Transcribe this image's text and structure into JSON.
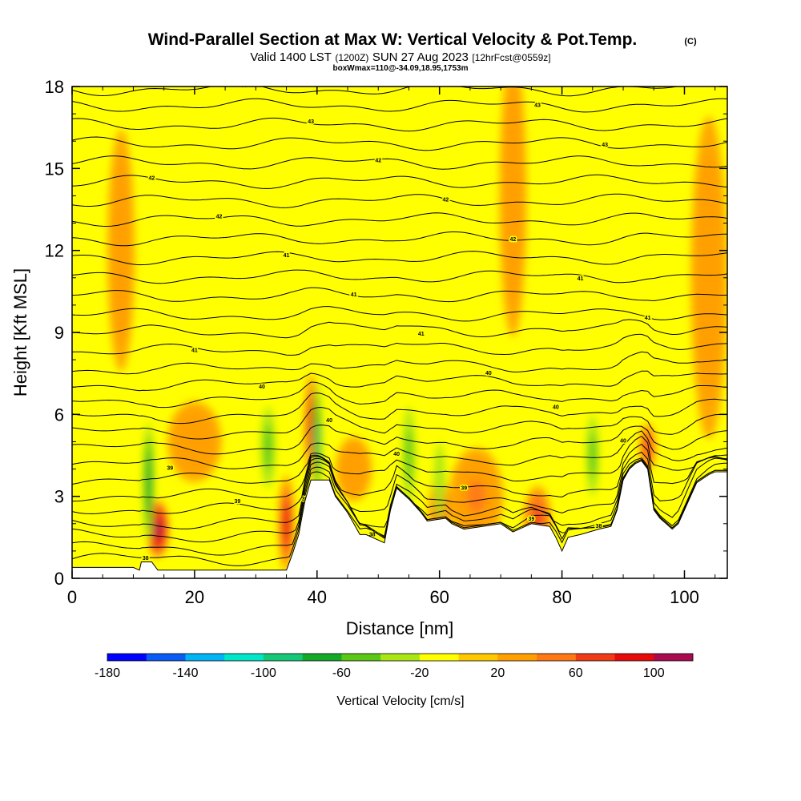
{
  "chart_data": {
    "type": "heatmap",
    "title": "Wind-Parallel Section at Max W: Vertical Velocity & Pot.Temp.",
    "title_mark": "(C)",
    "subtitle_valid": "Valid 1400 LST",
    "subtitle_utc": "(1200Z)",
    "subtitle_date": "SUN 27 Aug 2023",
    "subtitle_fcst": "[12hrFcst@0559z]",
    "subtitle_box": "boxWmax=110@-34.09,18.95,1753m",
    "xlabel": "Distance [nm]",
    "ylabel": "Height [Kft MSL]",
    "xlim": [
      0,
      107
    ],
    "ylim": [
      0,
      18
    ],
    "xticks": [
      "0",
      "20",
      "40",
      "60",
      "80",
      "100"
    ],
    "xtick_values": [
      0,
      20,
      40,
      60,
      80,
      100
    ],
    "yticks": [
      "0",
      "3",
      "6",
      "9",
      "12",
      "15",
      "18"
    ],
    "ytick_values": [
      0,
      3,
      6,
      9,
      12,
      15,
      18
    ],
    "colorbar": {
      "label": "Vertical Velocity [cm/s]",
      "min": -180,
      "max": 120,
      "ticks": [
        "-180",
        "-140",
        "-100",
        "-60",
        "-20",
        "20",
        "60",
        "100"
      ],
      "colors": [
        "#0000ff",
        "#0a5af5",
        "#00b4f5",
        "#00e6c8",
        "#14c878",
        "#14aa28",
        "#5ac814",
        "#aae614",
        "#ffff00",
        "#ffc800",
        "#ffa000",
        "#ff7814",
        "#f03c14",
        "#e60a0a",
        "#aa0a50"
      ]
    },
    "background_w_color": "#ffff00",
    "terrain_kft": [
      [
        0,
        0.4
      ],
      [
        10,
        0.4
      ],
      [
        11,
        0.3
      ],
      [
        11.3,
        0.6
      ],
      [
        13,
        0.6
      ],
      [
        14,
        0.3
      ],
      [
        25,
        0.3
      ],
      [
        35,
        0.3
      ],
      [
        36,
        0.9
      ],
      [
        37,
        1.6
      ],
      [
        38,
        2.8
      ],
      [
        39,
        3.6
      ],
      [
        40,
        3.6
      ],
      [
        41,
        3.6
      ],
      [
        42,
        3.6
      ],
      [
        43,
        3.0
      ],
      [
        45,
        2.4
      ],
      [
        46,
        2.0
      ],
      [
        47,
        1.6
      ],
      [
        48,
        1.6
      ],
      [
        51,
        1.3
      ],
      [
        52,
        2.5
      ],
      [
        53,
        3.3
      ],
      [
        55,
        2.9
      ],
      [
        57,
        2.4
      ],
      [
        58,
        2.1
      ],
      [
        61,
        2.2
      ],
      [
        62,
        2.0
      ],
      [
        64,
        1.8
      ],
      [
        67,
        1.9
      ],
      [
        70,
        2.0
      ],
      [
        72,
        1.7
      ],
      [
        75,
        2.0
      ],
      [
        78,
        1.9
      ],
      [
        79,
        1.5
      ],
      [
        80,
        1.0
      ],
      [
        81,
        1.5
      ],
      [
        83,
        1.6
      ],
      [
        86,
        1.8
      ],
      [
        88,
        1.9
      ],
      [
        89,
        2.5
      ],
      [
        90,
        3.6
      ],
      [
        91,
        4.0
      ],
      [
        92,
        4.2
      ],
      [
        93,
        4.3
      ],
      [
        94,
        4.0
      ],
      [
        95,
        2.5
      ],
      [
        96,
        2.2
      ],
      [
        97,
        2.0
      ],
      [
        98,
        1.8
      ],
      [
        99,
        2.0
      ],
      [
        100,
        2.5
      ],
      [
        101,
        3.0
      ],
      [
        102,
        3.5
      ],
      [
        104,
        3.8
      ],
      [
        105,
        3.9
      ],
      [
        107,
        3.9
      ]
    ],
    "theta_contours": [
      {
        "label": "38",
        "base_kft": 0.6
      },
      {
        "label": "38",
        "base_kft": 0.9
      },
      {
        "label": "38",
        "base_kft": 1.3
      },
      {
        "label": "39",
        "base_kft": 1.7
      },
      {
        "label": "39",
        "base_kft": 2.2
      },
      {
        "label": "39",
        "base_kft": 2.7
      },
      {
        "label": "39",
        "base_kft": 3.3
      },
      {
        "label": "39",
        "base_kft": 3.9
      },
      {
        "label": "40",
        "base_kft": 4.5
      },
      {
        "label": "40",
        "base_kft": 5.1
      },
      {
        "label": "40",
        "base_kft": 5.7
      },
      {
        "label": "40",
        "base_kft": 6.3
      },
      {
        "label": "40",
        "base_kft": 6.9
      },
      {
        "label": "40",
        "base_kft": 7.5
      },
      {
        "label": "41",
        "base_kft": 8.2
      },
      {
        "label": "41",
        "base_kft": 8.9
      },
      {
        "label": "41",
        "base_kft": 9.6
      },
      {
        "label": "41",
        "base_kft": 10.3
      },
      {
        "label": "41",
        "base_kft": 11.0
      },
      {
        "label": "41",
        "base_kft": 11.7
      },
      {
        "label": "42",
        "base_kft": 12.4
      },
      {
        "label": "42",
        "base_kft": 13.1
      },
      {
        "label": "42",
        "base_kft": 13.8
      },
      {
        "label": "42",
        "base_kft": 14.5
      },
      {
        "label": "42",
        "base_kft": 15.2
      },
      {
        "label": "43",
        "base_kft": 15.9
      },
      {
        "label": "43",
        "base_kft": 16.6
      },
      {
        "label": "43",
        "base_kft": 17.3
      },
      {
        "label": "44",
        "base_kft": 17.9
      }
    ],
    "w_features": [
      {
        "sign": "up",
        "value": 110,
        "x": 14,
        "y": 1.8,
        "sx": 1.2,
        "sy": 0.7
      },
      {
        "sign": "up",
        "value": 90,
        "x": 35,
        "y": 2.0,
        "sx": 0.9,
        "sy": 1.2
      },
      {
        "sign": "up",
        "value": 90,
        "x": 39,
        "y": 5.6,
        "sx": 0.7,
        "sy": 1.3
      },
      {
        "sign": "up",
        "value": 60,
        "x": 60,
        "y": 2.5,
        "sx": 1.2,
        "sy": 0.8
      },
      {
        "sign": "up",
        "value": 60,
        "x": 76,
        "y": 2.2,
        "sx": 1.5,
        "sy": 0.8
      },
      {
        "sign": "up",
        "value": 70,
        "x": 94,
        "y": 4.8,
        "sx": 0.9,
        "sy": 0.6
      },
      {
        "sign": "up",
        "value": 40,
        "x": 66,
        "y": 3.0,
        "sx": 3.0,
        "sy": 1.2
      },
      {
        "sign": "up",
        "value": 30,
        "x": 8,
        "y": 12,
        "sx": 1.5,
        "sy": 3.0
      },
      {
        "sign": "up",
        "value": 30,
        "x": 72,
        "y": 14,
        "sx": 1.5,
        "sy": 3.5
      },
      {
        "sign": "up",
        "value": 30,
        "x": 104,
        "y": 11,
        "sx": 2.0,
        "sy": 4.0
      },
      {
        "sign": "up",
        "value": 30,
        "x": 20,
        "y": 5.0,
        "sx": 3.0,
        "sy": 1.0
      },
      {
        "sign": "up",
        "value": 30,
        "x": 46,
        "y": 4.0,
        "sx": 2.0,
        "sy": 0.8
      },
      {
        "sign": "down",
        "value": -80,
        "x": 12.5,
        "y": 3.5,
        "sx": 0.6,
        "sy": 1.5
      },
      {
        "sign": "down",
        "value": -90,
        "x": 40,
        "y": 5.0,
        "sx": 0.5,
        "sy": 1.5
      },
      {
        "sign": "down",
        "value": -60,
        "x": 32,
        "y": 4.8,
        "sx": 0.8,
        "sy": 1.0
      },
      {
        "sign": "down",
        "value": -60,
        "x": 55,
        "y": 4.5,
        "sx": 0.7,
        "sy": 1.2
      },
      {
        "sign": "down",
        "value": -50,
        "x": 85,
        "y": 4.5,
        "sx": 0.7,
        "sy": 1.0
      },
      {
        "sign": "down",
        "value": -40,
        "x": 60,
        "y": 3.5,
        "sx": 0.6,
        "sy": 1.0
      }
    ]
  }
}
